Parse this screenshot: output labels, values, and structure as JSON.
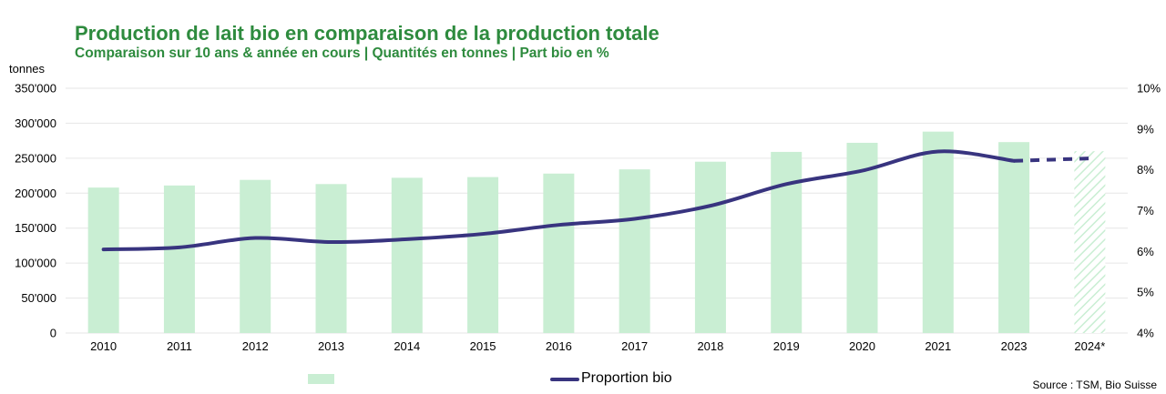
{
  "title": "Production de lait bio en comparaison de la production totale",
  "subtitle": "Comparaison sur 10 ans & année en cours | Quantités en tonnes | Part bio en %",
  "source": "Source : TSM, Bio Suisse",
  "colors": {
    "title": "#2e8b3e",
    "bars": "#c9eed3",
    "line": "#38347f",
    "grid": "#e6e6e6",
    "projection_hatch": "#c9eed3"
  },
  "chart_data": {
    "type": "bar+line",
    "categories": [
      "2010",
      "2011",
      "2012",
      "2013",
      "2014",
      "2015",
      "2016",
      "2017",
      "2018",
      "2019",
      "2020",
      "2021",
      "2023",
      "2024*"
    ],
    "y_axis_left": {
      "label": "tonnes",
      "ylim": [
        0,
        350000
      ],
      "ticks": [
        0,
        50000,
        100000,
        150000,
        200000,
        250000,
        300000,
        350000
      ],
      "tick_labels": [
        "0",
        "50'000",
        "100'000",
        "150'000",
        "200'000",
        "250'000",
        "300'000",
        "350'000"
      ]
    },
    "y_axis_right": {
      "ylim": [
        4,
        10
      ],
      "ticks": [
        4,
        5,
        6,
        7,
        8,
        9,
        10
      ],
      "tick_labels": [
        "4%",
        "5%",
        "6%",
        "7%",
        "8%",
        "9%",
        "10%"
      ]
    },
    "grid": true,
    "series": [
      {
        "kind": "bar",
        "name": "",
        "axis": "left",
        "values": [
          208000,
          211000,
          219000,
          213000,
          222000,
          223000,
          228000,
          234000,
          245000,
          259000,
          272000,
          288000,
          273000,
          260000
        ],
        "projected_from_index": 13
      },
      {
        "kind": "line",
        "name": "Proportion bio",
        "axis": "right",
        "values": [
          6.05,
          6.1,
          6.33,
          6.23,
          6.3,
          6.43,
          6.65,
          6.8,
          7.12,
          7.65,
          7.98,
          8.45,
          8.22,
          8.28
        ],
        "dashed_from_index": 12
      }
    ],
    "legend": {
      "position": "bottom-center",
      "entries": [
        "",
        "Proportion bio"
      ]
    }
  }
}
